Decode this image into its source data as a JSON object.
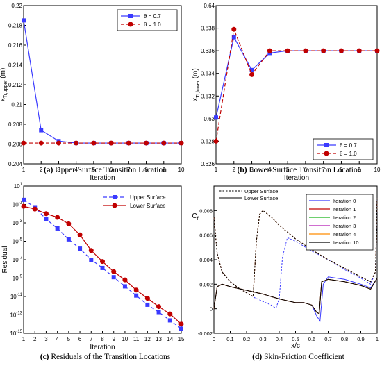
{
  "chart_data": [
    {
      "id": "a",
      "type": "line",
      "caption_tag": "(a)",
      "caption_text": " Upper-Surface Transition Location",
      "xlabel": "Iteration",
      "ylabel_main": "x",
      "ylabel_sub": "Tr,upper",
      "ylabel_unit": " (m)",
      "xlim": [
        1,
        10
      ],
      "ylim": [
        0.204,
        0.22
      ],
      "xticks": [
        "1",
        "2",
        "3",
        "4",
        "5",
        "6",
        "7",
        "8",
        "9",
        "10"
      ],
      "yticks": [
        "0.204",
        "0.206",
        "0.208",
        "0.21",
        "0.212",
        "0.214",
        "0.216",
        "0.218",
        "0.22"
      ],
      "legend_position": "top-right",
      "series": [
        {
          "name": "θ = 0.7",
          "color": "#3a3aff",
          "marker": "square",
          "dash": false,
          "x": [
            1,
            2,
            3,
            4,
            5,
            6,
            7,
            8,
            9,
            10
          ],
          "y": [
            0.2185,
            0.2074,
            0.2063,
            0.2061,
            0.2061,
            0.2061,
            0.2061,
            0.2061,
            0.2061,
            0.2061
          ]
        },
        {
          "name": "θ = 1.0",
          "color": "#c00000",
          "marker": "circle",
          "dash": true,
          "x": [
            1,
            2,
            3,
            4,
            5,
            6,
            7,
            8,
            9,
            10
          ],
          "y": [
            0.2061,
            0.2061,
            0.2061,
            0.2061,
            0.2061,
            0.2061,
            0.2061,
            0.2061,
            0.2061,
            0.2061
          ]
        }
      ]
    },
    {
      "id": "b",
      "type": "line",
      "caption_tag": "(b)",
      "caption_text": " Lower-Surface Transition Location",
      "xlabel": "Iteration",
      "ylabel_main": "x",
      "ylabel_sub": "Tr,lower",
      "ylabel_unit": " (m)",
      "xlim": [
        1,
        10
      ],
      "ylim": [
        0.626,
        0.64
      ],
      "xticks": [
        "1",
        "2",
        "3",
        "4",
        "5",
        "6",
        "7",
        "8",
        "9",
        "10"
      ],
      "yticks": [
        "0.626",
        "0.628",
        "0.63",
        "0.632",
        "0.634",
        "0.636",
        "0.638",
        "0.64"
      ],
      "legend_position": "bottom-right",
      "series": [
        {
          "name": "θ = 0.7",
          "color": "#3a3aff",
          "marker": "square",
          "dash": false,
          "x": [
            1,
            2,
            3,
            4,
            5,
            6,
            7,
            8,
            9,
            10
          ],
          "y": [
            0.6301,
            0.6372,
            0.6343,
            0.6358,
            0.636,
            0.636,
            0.636,
            0.636,
            0.636,
            0.636
          ]
        },
        {
          "name": "θ = 1.0",
          "color": "#c00000",
          "marker": "circle",
          "dash": true,
          "x": [
            1,
            2,
            3,
            4,
            5,
            6,
            7,
            8,
            9,
            10
          ],
          "y": [
            0.628,
            0.6379,
            0.6339,
            0.636,
            0.636,
            0.636,
            0.636,
            0.636,
            0.636,
            0.636
          ]
        }
      ]
    },
    {
      "id": "c",
      "type": "line",
      "scale_y": "log",
      "caption_tag": "(c)",
      "caption_text": " Residuals of the Transition Locations",
      "xlabel": "Iteration",
      "ylabel": "Residual",
      "xlim": [
        1,
        15
      ],
      "ylim_exp": [
        -15,
        1
      ],
      "xticks": [
        "1",
        "2",
        "3",
        "4",
        "5",
        "6",
        "7",
        "8",
        "9",
        "10",
        "11",
        "12",
        "13",
        "14",
        "15"
      ],
      "yticks_exp": [
        1,
        -1,
        -3,
        -5,
        -7,
        -9,
        -11,
        -13,
        -15
      ],
      "legend_position": "top-right",
      "series": [
        {
          "name": "Upper Surface",
          "color": "#3a3aff",
          "marker": "square",
          "dash": true,
          "x": [
            1,
            2,
            3,
            4,
            5,
            6,
            7,
            8,
            9,
            10,
            11,
            12,
            13,
            14,
            15
          ],
          "log10_y": [
            -0.5,
            -1.3,
            -2.6,
            -3.6,
            -4.8,
            -5.8,
            -7.0,
            -7.9,
            -8.9,
            -9.9,
            -10.9,
            -11.9,
            -12.7,
            -13.6,
            -14.5
          ]
        },
        {
          "name": "Lower Surface",
          "color": "#c00000",
          "marker": "circle",
          "dash": false,
          "x": [
            1,
            2,
            3,
            4,
            5,
            6,
            7,
            8,
            9,
            10,
            11,
            12,
            13,
            14,
            15
          ],
          "log10_y": [
            -1.2,
            -1.5,
            -2.0,
            -2.4,
            -3.1,
            -4.3,
            -6.0,
            -7.2,
            -8.3,
            -9.2,
            -10.3,
            -11.2,
            -12.1,
            -12.9,
            -14.0
          ]
        }
      ]
    },
    {
      "id": "d",
      "type": "line",
      "caption_tag": "(d)",
      "caption_text": " Skin-Friction Coefficient",
      "xlabel": "x/c",
      "ylabel_main": "C",
      "ylabel_sub": "f",
      "xlim": [
        0,
        1
      ],
      "ylim": [
        -0.002,
        0.01
      ],
      "xticks": [
        "0",
        "0.1",
        "0.2",
        "0.3",
        "0.4",
        "0.5",
        "0.6",
        "0.7",
        "0.8",
        "0.9",
        "1"
      ],
      "yticks": [
        "-0.002",
        "0",
        "0.002",
        "0.004",
        "0.006",
        "0.008"
      ],
      "style_legend": [
        {
          "name": "Upper Surface",
          "dash": true
        },
        {
          "name": "Lower Surface",
          "dash": false
        }
      ],
      "series_legend_position": "top-right",
      "series": [
        {
          "name": "Iteration 0",
          "color": "#3a3aff",
          "upper_x": [
            0,
            0.02,
            0.05,
            0.1,
            0.15,
            0.2,
            0.25,
            0.3,
            0.35,
            0.38,
            0.4,
            0.42,
            0.45,
            0.5,
            0.6,
            0.7,
            0.8,
            0.9,
            0.96,
            0.99,
            1.0
          ],
          "upper_y": [
            0.0075,
            0.0045,
            0.003,
            0.0022,
            0.0017,
            0.0013,
            0.0009,
            0.0006,
            0.0003,
            5e-05,
            0.0008,
            0.0042,
            0.0058,
            0.0055,
            0.0047,
            0.004,
            0.0032,
            0.0025,
            0.002,
            0.003,
            0.009
          ],
          "lower_x": [
            0,
            0.02,
            0.05,
            0.1,
            0.2,
            0.3,
            0.4,
            0.5,
            0.55,
            0.6,
            0.63,
            0.65,
            0.67,
            0.7,
            0.8,
            0.9,
            0.96,
            1.0
          ],
          "lower_y": [
            0,
            0.0018,
            0.002,
            0.0018,
            0.0015,
            0.0012,
            0.0008,
            0.0005,
            0.0005,
            0.0003,
            -0.0006,
            -0.001,
            0.002,
            0.0026,
            0.0024,
            0.002,
            0.0017,
            0.0025
          ]
        },
        {
          "name": "Iteration 1",
          "color": "#c00000",
          "upper_x": [
            0,
            0.02,
            0.05,
            0.1,
            0.15,
            0.2,
            0.24,
            0.26,
            0.28,
            0.3,
            0.35,
            0.4,
            0.5,
            0.6,
            0.7,
            0.8,
            0.9,
            0.96,
            0.99,
            1.0
          ],
          "upper_y": [
            0.0075,
            0.0045,
            0.003,
            0.0022,
            0.0017,
            0.0013,
            0.001,
            0.0055,
            0.0077,
            0.008,
            0.0075,
            0.0068,
            0.0057,
            0.0048,
            0.004,
            0.0033,
            0.0026,
            0.0022,
            0.003,
            0.009
          ],
          "lower_x": [
            0,
            0.02,
            0.05,
            0.1,
            0.2,
            0.3,
            0.4,
            0.5,
            0.55,
            0.6,
            0.63,
            0.645,
            0.66,
            0.7,
            0.8,
            0.9,
            0.96,
            1.0
          ],
          "lower_y": [
            0,
            0.0018,
            0.002,
            0.0018,
            0.0015,
            0.0012,
            0.0008,
            0.0005,
            0.0005,
            0.0003,
            -0.0003,
            -0.0004,
            0.0022,
            0.0024,
            0.0022,
            0.0019,
            0.0016,
            0.0025
          ]
        },
        {
          "name": "Iteration 2",
          "color": "#18b418",
          "upper_x": [
            0,
            0.02,
            0.05,
            0.1,
            0.15,
            0.2,
            0.24,
            0.26,
            0.28,
            0.3,
            0.35,
            0.4,
            0.5,
            0.6,
            0.7,
            0.8,
            0.9,
            0.96,
            0.99,
            1.0
          ],
          "upper_y": [
            0.0075,
            0.0045,
            0.003,
            0.0022,
            0.0017,
            0.0013,
            0.001,
            0.0055,
            0.0077,
            0.008,
            0.0075,
            0.0068,
            0.0057,
            0.0048,
            0.004,
            0.0033,
            0.0026,
            0.0022,
            0.003,
            0.009
          ],
          "lower_x": [
            0,
            0.02,
            0.05,
            0.1,
            0.2,
            0.3,
            0.4,
            0.5,
            0.55,
            0.6,
            0.63,
            0.645,
            0.66,
            0.7,
            0.8,
            0.9,
            0.96,
            1.0
          ],
          "lower_y": [
            0,
            0.0018,
            0.002,
            0.0018,
            0.0015,
            0.0012,
            0.0008,
            0.0005,
            0.0005,
            0.0003,
            -0.0003,
            -0.0004,
            0.0022,
            0.0024,
            0.0022,
            0.0019,
            0.0016,
            0.0025
          ]
        },
        {
          "name": "Iteration 3",
          "color": "#b418b4",
          "upper_x": [
            0,
            0.02,
            0.05,
            0.1,
            0.15,
            0.2,
            0.24,
            0.26,
            0.28,
            0.3,
            0.35,
            0.4,
            0.5,
            0.6,
            0.7,
            0.8,
            0.9,
            0.96,
            0.99,
            1.0
          ],
          "upper_y": [
            0.0075,
            0.0045,
            0.003,
            0.0022,
            0.0017,
            0.0013,
            0.001,
            0.0055,
            0.0077,
            0.008,
            0.0075,
            0.0068,
            0.0057,
            0.0048,
            0.004,
            0.0033,
            0.0026,
            0.0022,
            0.003,
            0.009
          ],
          "lower_x": [
            0,
            0.02,
            0.05,
            0.1,
            0.2,
            0.3,
            0.4,
            0.5,
            0.55,
            0.6,
            0.63,
            0.645,
            0.66,
            0.7,
            0.8,
            0.9,
            0.96,
            1.0
          ],
          "lower_y": [
            0,
            0.0018,
            0.002,
            0.0018,
            0.0015,
            0.0012,
            0.0008,
            0.0005,
            0.0005,
            0.0003,
            -0.0003,
            -0.0004,
            0.0022,
            0.0024,
            0.0022,
            0.0019,
            0.0016,
            0.0025
          ]
        },
        {
          "name": "Iteration 4",
          "color": "#ff8c00",
          "upper_x": [
            0,
            0.02,
            0.05,
            0.1,
            0.15,
            0.2,
            0.24,
            0.26,
            0.28,
            0.3,
            0.35,
            0.4,
            0.5,
            0.6,
            0.7,
            0.8,
            0.9,
            0.96,
            0.99,
            1.0
          ],
          "upper_y": [
            0.0075,
            0.0045,
            0.003,
            0.0022,
            0.0017,
            0.0013,
            0.001,
            0.0055,
            0.0077,
            0.008,
            0.0075,
            0.0068,
            0.0057,
            0.0048,
            0.004,
            0.0033,
            0.0026,
            0.0022,
            0.003,
            0.009
          ],
          "lower_x": [
            0,
            0.02,
            0.05,
            0.1,
            0.2,
            0.3,
            0.4,
            0.5,
            0.55,
            0.6,
            0.63,
            0.645,
            0.66,
            0.7,
            0.8,
            0.9,
            0.96,
            1.0
          ],
          "lower_y": [
            0,
            0.0018,
            0.002,
            0.0018,
            0.0015,
            0.0012,
            0.0008,
            0.0005,
            0.0005,
            0.0003,
            -0.0003,
            -0.0004,
            0.0022,
            0.0024,
            0.0022,
            0.0019,
            0.0016,
            0.0025
          ]
        },
        {
          "name": "Iteration 10",
          "color": "#000000",
          "upper_x": [
            0,
            0.02,
            0.05,
            0.1,
            0.15,
            0.2,
            0.24,
            0.26,
            0.28,
            0.3,
            0.35,
            0.4,
            0.5,
            0.6,
            0.7,
            0.8,
            0.9,
            0.96,
            0.99,
            1.0
          ],
          "upper_y": [
            0.0075,
            0.0045,
            0.003,
            0.0022,
            0.0017,
            0.0013,
            0.001,
            0.0055,
            0.0077,
            0.008,
            0.0075,
            0.0068,
            0.0057,
            0.0048,
            0.004,
            0.0033,
            0.0026,
            0.0022,
            0.003,
            0.009
          ],
          "lower_x": [
            0,
            0.02,
            0.05,
            0.1,
            0.2,
            0.3,
            0.4,
            0.5,
            0.55,
            0.6,
            0.63,
            0.645,
            0.66,
            0.7,
            0.8,
            0.9,
            0.96,
            1.0
          ],
          "lower_y": [
            0,
            0.0018,
            0.002,
            0.0018,
            0.0015,
            0.0012,
            0.0008,
            0.0005,
            0.0005,
            0.0003,
            -0.0003,
            -0.0004,
            0.0022,
            0.0024,
            0.0022,
            0.0019,
            0.0016,
            0.0025
          ]
        }
      ]
    }
  ]
}
